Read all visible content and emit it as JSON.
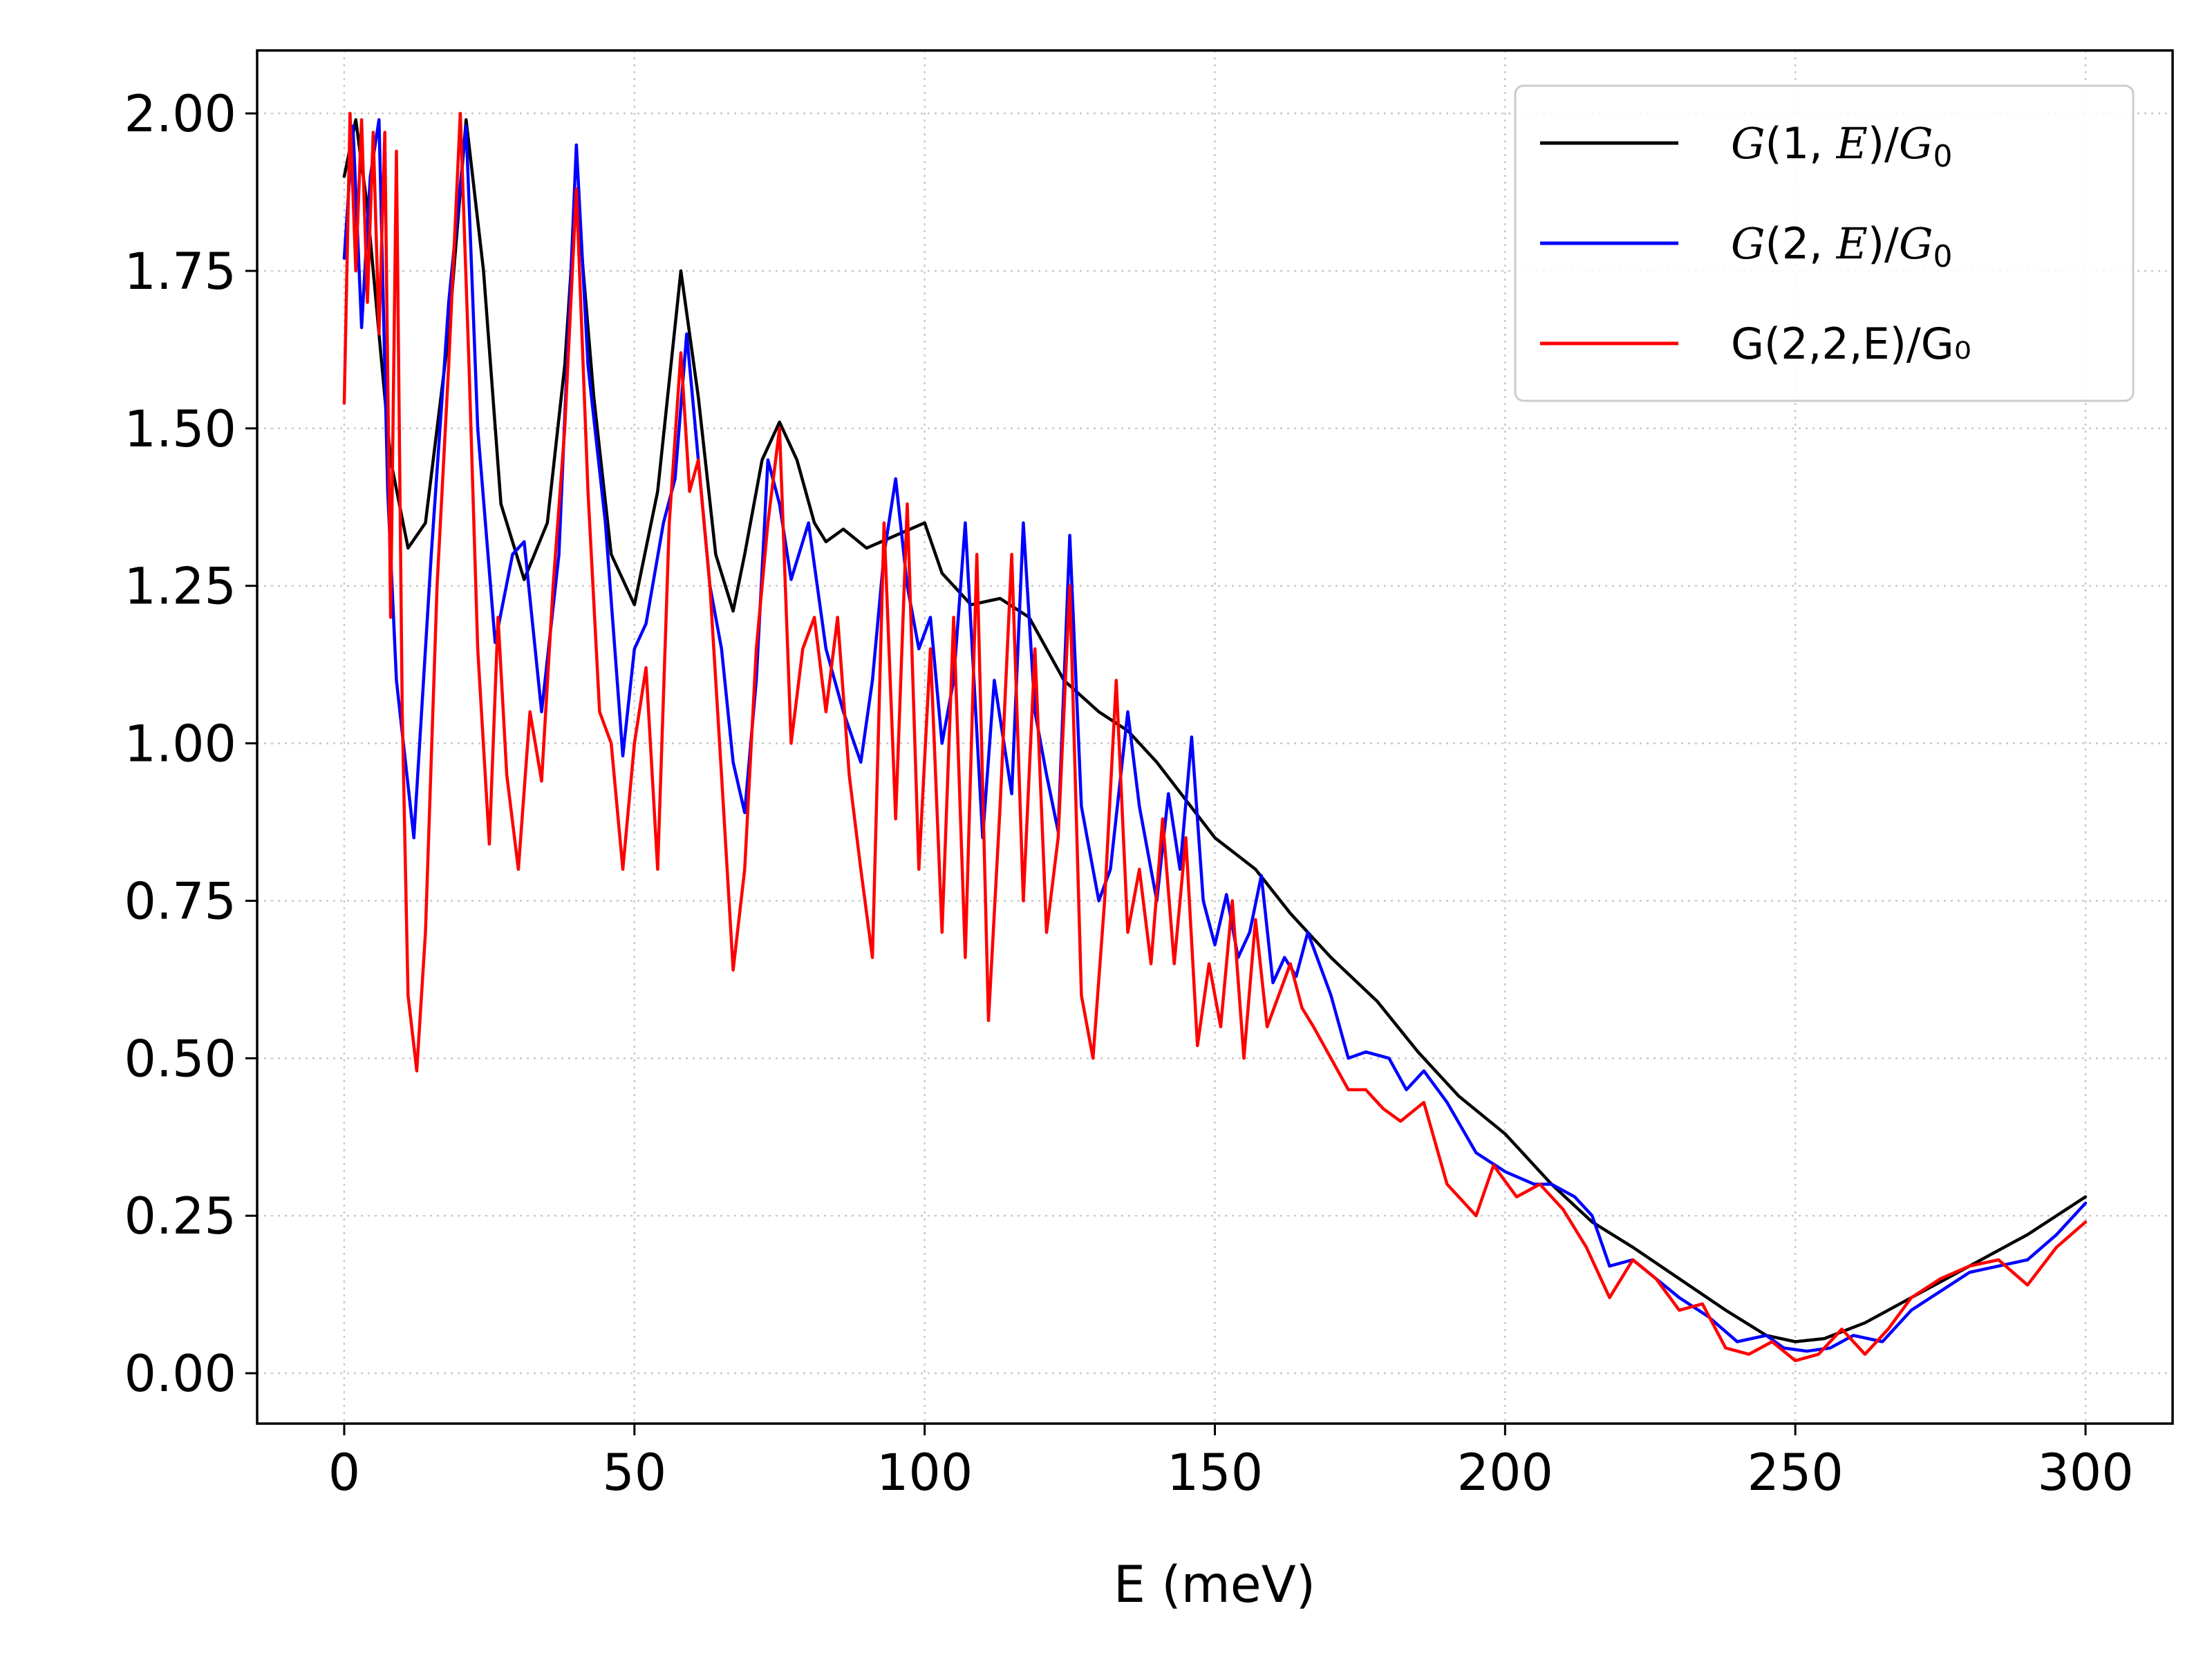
{
  "chart_data": {
    "type": "line",
    "title": "",
    "xlabel": "E (meV)",
    "ylabel": "",
    "xlim": [
      -15,
      315
    ],
    "ylim": [
      -0.08,
      2.1
    ],
    "xticks": [
      0,
      50,
      100,
      150,
      200,
      250,
      300
    ],
    "xtick_labels": [
      "0",
      "50",
      "100",
      "150",
      "200",
      "250",
      "300"
    ],
    "yticks": [
      0.0,
      0.25,
      0.5,
      0.75,
      1.0,
      1.25,
      1.5,
      1.75,
      2.0
    ],
    "ytick_labels": [
      "0.00",
      "0.25",
      "0.50",
      "0.75",
      "1.00",
      "1.25",
      "1.50",
      "1.75",
      "2.00"
    ],
    "grid": true,
    "legend_position": "top-right",
    "series": [
      {
        "name": "G(1,E)/G₀",
        "legend": {
          "pre": "G",
          "args": "(1, ",
          "var": "E",
          "post": ")/",
          "den": "G",
          "sub": "0"
        },
        "color": "#000000",
        "x": [
          0,
          2,
          4,
          6,
          8,
          11,
          14,
          18,
          21,
          24,
          27,
          31,
          35,
          38,
          40,
          43,
          46,
          50,
          54,
          58,
          61,
          64,
          67,
          69,
          72,
          75,
          78,
          81,
          83,
          86,
          90,
          95,
          100,
          103,
          108,
          113,
          118,
          124,
          130,
          135,
          140,
          145,
          150,
          157,
          163,
          170,
          178,
          185,
          192,
          200,
          208,
          215,
          222,
          230,
          238,
          245,
          250,
          255,
          262,
          270,
          280,
          290,
          300
        ],
        "y": [
          1.9,
          1.99,
          1.85,
          1.65,
          1.45,
          1.31,
          1.35,
          1.65,
          1.99,
          1.75,
          1.38,
          1.26,
          1.35,
          1.6,
          1.88,
          1.55,
          1.3,
          1.22,
          1.4,
          1.75,
          1.55,
          1.3,
          1.21,
          1.3,
          1.45,
          1.51,
          1.45,
          1.35,
          1.32,
          1.34,
          1.31,
          1.33,
          1.35,
          1.27,
          1.22,
          1.23,
          1.2,
          1.1,
          1.05,
          1.02,
          0.97,
          0.91,
          0.85,
          0.8,
          0.73,
          0.66,
          0.59,
          0.51,
          0.44,
          0.38,
          0.3,
          0.24,
          0.2,
          0.15,
          0.1,
          0.06,
          0.05,
          0.055,
          0.08,
          0.12,
          0.17,
          0.22,
          0.28
        ]
      },
      {
        "name": "G(2,E)/G₀",
        "legend": {
          "pre": "G",
          "args": "(2, ",
          "var": "E",
          "post": ")/",
          "den": "G",
          "sub": "0"
        },
        "color": "#0000ff",
        "x": [
          0,
          1.5,
          3,
          4.5,
          6,
          7.5,
          9,
          12,
          15,
          18,
          21,
          23,
          26,
          29,
          31,
          34,
          37,
          40,
          42,
          45,
          48,
          50,
          52,
          55,
          57,
          59,
          61,
          63,
          65,
          67,
          69,
          71,
          73,
          75,
          77,
          80,
          83,
          86,
          89,
          91,
          93,
          95,
          97,
          99,
          101,
          103,
          105,
          107,
          110,
          112,
          115,
          117,
          119,
          121,
          123,
          125,
          127,
          130,
          132,
          135,
          137,
          140,
          142,
          144,
          146,
          148,
          150,
          152,
          154,
          156,
          158,
          160,
          162,
          164,
          166,
          170,
          173,
          176,
          180,
          183,
          186,
          190,
          195,
          200,
          205,
          208,
          212,
          215,
          218,
          222,
          226,
          230,
          235,
          240,
          245,
          248,
          252,
          256,
          260,
          265,
          270,
          275,
          280,
          285,
          290,
          295,
          300
        ],
        "y": [
          1.77,
          1.98,
          1.66,
          1.9,
          1.99,
          1.4,
          1.1,
          0.85,
          1.3,
          1.7,
          1.98,
          1.5,
          1.16,
          1.3,
          1.32,
          1.05,
          1.3,
          1.95,
          1.6,
          1.35,
          0.98,
          1.15,
          1.19,
          1.35,
          1.42,
          1.65,
          1.45,
          1.25,
          1.15,
          0.97,
          0.89,
          1.1,
          1.45,
          1.38,
          1.26,
          1.35,
          1.15,
          1.05,
          0.97,
          1.1,
          1.3,
          1.42,
          1.25,
          1.15,
          1.2,
          1.0,
          1.1,
          1.35,
          0.85,
          1.1,
          0.92,
          1.35,
          1.05,
          0.95,
          0.86,
          1.33,
          0.9,
          0.75,
          0.8,
          1.05,
          0.9,
          0.75,
          0.92,
          0.8,
          1.01,
          0.75,
          0.68,
          0.76,
          0.66,
          0.7,
          0.79,
          0.62,
          0.66,
          0.63,
          0.7,
          0.6,
          0.5,
          0.51,
          0.5,
          0.45,
          0.48,
          0.43,
          0.35,
          0.32,
          0.3,
          0.3,
          0.28,
          0.25,
          0.17,
          0.18,
          0.15,
          0.12,
          0.09,
          0.05,
          0.06,
          0.04,
          0.035,
          0.04,
          0.06,
          0.05,
          0.1,
          0.13,
          0.16,
          0.17,
          0.18,
          0.22,
          0.27
        ]
      },
      {
        "name": "G(2,2,E)/G₀",
        "legend": {
          "plain": "G(2,2,E)/G₀"
        },
        "color": "#ff0000",
        "x": [
          0,
          1,
          2,
          3,
          4,
          5,
          6,
          7,
          8,
          9,
          10,
          11,
          12.5,
          14,
          16,
          18,
          20,
          21.5,
          23,
          25,
          26.5,
          28,
          30,
          32,
          34,
          36,
          38,
          40,
          42,
          44,
          46,
          48,
          50,
          52,
          54,
          56,
          58,
          59.5,
          61,
          63,
          65,
          67,
          69,
          71,
          73,
          75,
          77,
          79,
          81,
          83,
          85,
          87,
          89,
          91,
          93,
          95,
          97,
          99,
          101,
          103,
          105,
          107,
          109,
          111,
          113,
          115,
          117,
          119,
          121,
          123,
          125,
          127,
          129,
          131,
          133,
          135,
          137,
          139,
          141,
          143,
          145,
          147,
          149,
          151,
          153,
          155,
          157,
          159,
          161,
          163,
          165,
          167,
          170,
          173,
          176,
          179,
          182,
          186,
          190,
          195,
          198,
          202,
          206,
          210,
          214,
          218,
          222,
          226,
          230,
          234,
          238,
          242,
          246,
          250,
          254,
          258,
          262,
          266,
          270,
          275,
          280,
          285,
          290,
          295,
          300
        ],
        "y": [
          1.54,
          2.0,
          1.75,
          1.99,
          1.7,
          1.97,
          1.65,
          1.97,
          1.2,
          1.94,
          1.05,
          0.6,
          0.48,
          0.7,
          1.25,
          1.6,
          2.0,
          1.6,
          1.15,
          0.84,
          1.2,
          0.95,
          0.8,
          1.05,
          0.94,
          1.25,
          1.5,
          1.88,
          1.4,
          1.05,
          1.0,
          0.8,
          1.0,
          1.12,
          0.8,
          1.35,
          1.62,
          1.4,
          1.45,
          1.25,
          0.95,
          0.64,
          0.8,
          1.15,
          1.35,
          1.5,
          1.0,
          1.15,
          1.2,
          1.05,
          1.2,
          0.95,
          0.8,
          0.66,
          1.35,
          0.88,
          1.38,
          0.8,
          1.15,
          0.7,
          1.2,
          0.66,
          1.3,
          0.56,
          0.9,
          1.3,
          0.75,
          1.15,
          0.7,
          0.85,
          1.25,
          0.6,
          0.5,
          0.75,
          1.1,
          0.7,
          0.8,
          0.65,
          0.88,
          0.65,
          0.85,
          0.52,
          0.65,
          0.55,
          0.75,
          0.5,
          0.72,
          0.55,
          0.6,
          0.65,
          0.58,
          0.55,
          0.5,
          0.45,
          0.45,
          0.42,
          0.4,
          0.43,
          0.3,
          0.25,
          0.33,
          0.28,
          0.3,
          0.26,
          0.2,
          0.12,
          0.18,
          0.15,
          0.1,
          0.11,
          0.04,
          0.03,
          0.05,
          0.02,
          0.03,
          0.07,
          0.03,
          0.07,
          0.12,
          0.15,
          0.17,
          0.18,
          0.14,
          0.2,
          0.24
        ]
      }
    ]
  }
}
